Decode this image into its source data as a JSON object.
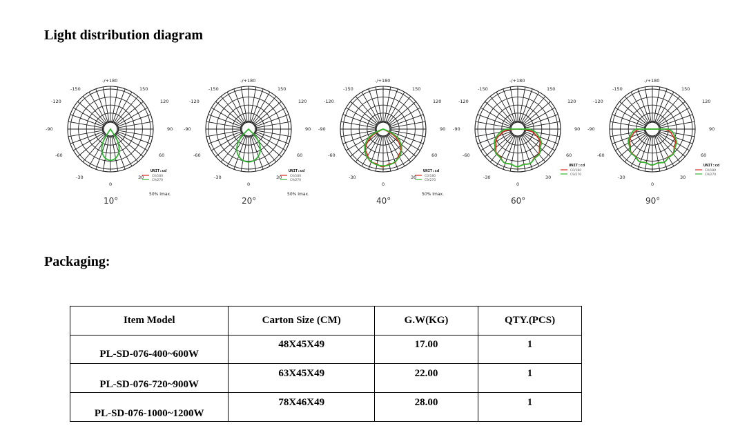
{
  "headings": {
    "light_distribution": "Light distribution diagram",
    "packaging": "Packaging:"
  },
  "polar_charts": [
    {
      "beam_angle": "10°",
      "ticks": {
        "top": "-/+180",
        "n150": "-150",
        "p150": "150",
        "n120": "-120",
        "p120": "120",
        "n90": "-90",
        "p90": "90",
        "n60": "-60",
        "p60": "60",
        "n30": "-30",
        "p30": "30",
        "zero": "0"
      },
      "legend": {
        "unit": "UNIT:cd",
        "c0": "C0/180",
        "c90": "C9/270",
        "imax": "50% Imax."
      }
    },
    {
      "beam_angle": "20°",
      "ticks": {
        "top": "-/+180",
        "n150": "-150",
        "p150": "150",
        "n120": "-120",
        "p120": "120",
        "n90": "-90",
        "p90": "90",
        "n60": "-60",
        "p60": "60",
        "n30": "-30",
        "p30": "30",
        "zero": "0"
      },
      "legend": {
        "unit": "UNIT:cd",
        "c0": "C0/180",
        "c90": "C9/270",
        "imax": "50% Imax."
      }
    },
    {
      "beam_angle": "40°",
      "ticks": {
        "top": "-/+180",
        "n150": "-150",
        "p150": "150",
        "n120": "-120",
        "p120": "120",
        "n90": "-90",
        "p90": "90",
        "n60": "-60",
        "p60": "60",
        "n30": "-30",
        "p30": "30",
        "zero": "0"
      },
      "legend": {
        "unit": "UNIT:cd",
        "c0": "C0/180",
        "c90": "C9/270",
        "imax": "50% Imax."
      }
    },
    {
      "beam_angle": "60°",
      "ticks": {
        "top": "-/+180",
        "n150": "-150",
        "p150": "150",
        "n120": "-120",
        "p120": "120",
        "n90": "-90",
        "p90": "90",
        "n60": "-60",
        "p60": "60",
        "n30": "-30",
        "p30": "30",
        "zero": "0"
      },
      "legend": {
        "unit": "UNIT:cd",
        "c0": "C0/180",
        "c90": "C9/270",
        "imax": ""
      }
    },
    {
      "beam_angle": "90°",
      "ticks": {
        "top": "-/+180",
        "n150": "-150",
        "p150": "150",
        "n120": "-120",
        "p120": "120",
        "n90": "-90",
        "p90": "90",
        "n60": "-60",
        "p60": "60",
        "n30": "-30",
        "p30": "30",
        "zero": "0"
      },
      "legend": {
        "unit": "UNIT:cd",
        "c0": "C0/180",
        "c90": "C9/270",
        "imax": ""
      }
    }
  ],
  "colors": {
    "c0_curve": "#d62a1e",
    "c90_curve": "#2fb52f",
    "grid": "#1a1a1a"
  },
  "packaging_table": {
    "headers": [
      "Item Model",
      "Carton Size (CM)",
      "G.W(KG)",
      "QTY.(PCS)"
    ],
    "rows": [
      [
        "PL-SD-076-400~600W",
        "48X45X49",
        "17.00",
        "1"
      ],
      [
        "PL-SD-076-720~900W",
        "63X45X49",
        "22.00",
        "1"
      ],
      [
        "PL-SD-076-1000~1200W",
        "78X46X49",
        "28.00",
        "1"
      ]
    ]
  }
}
